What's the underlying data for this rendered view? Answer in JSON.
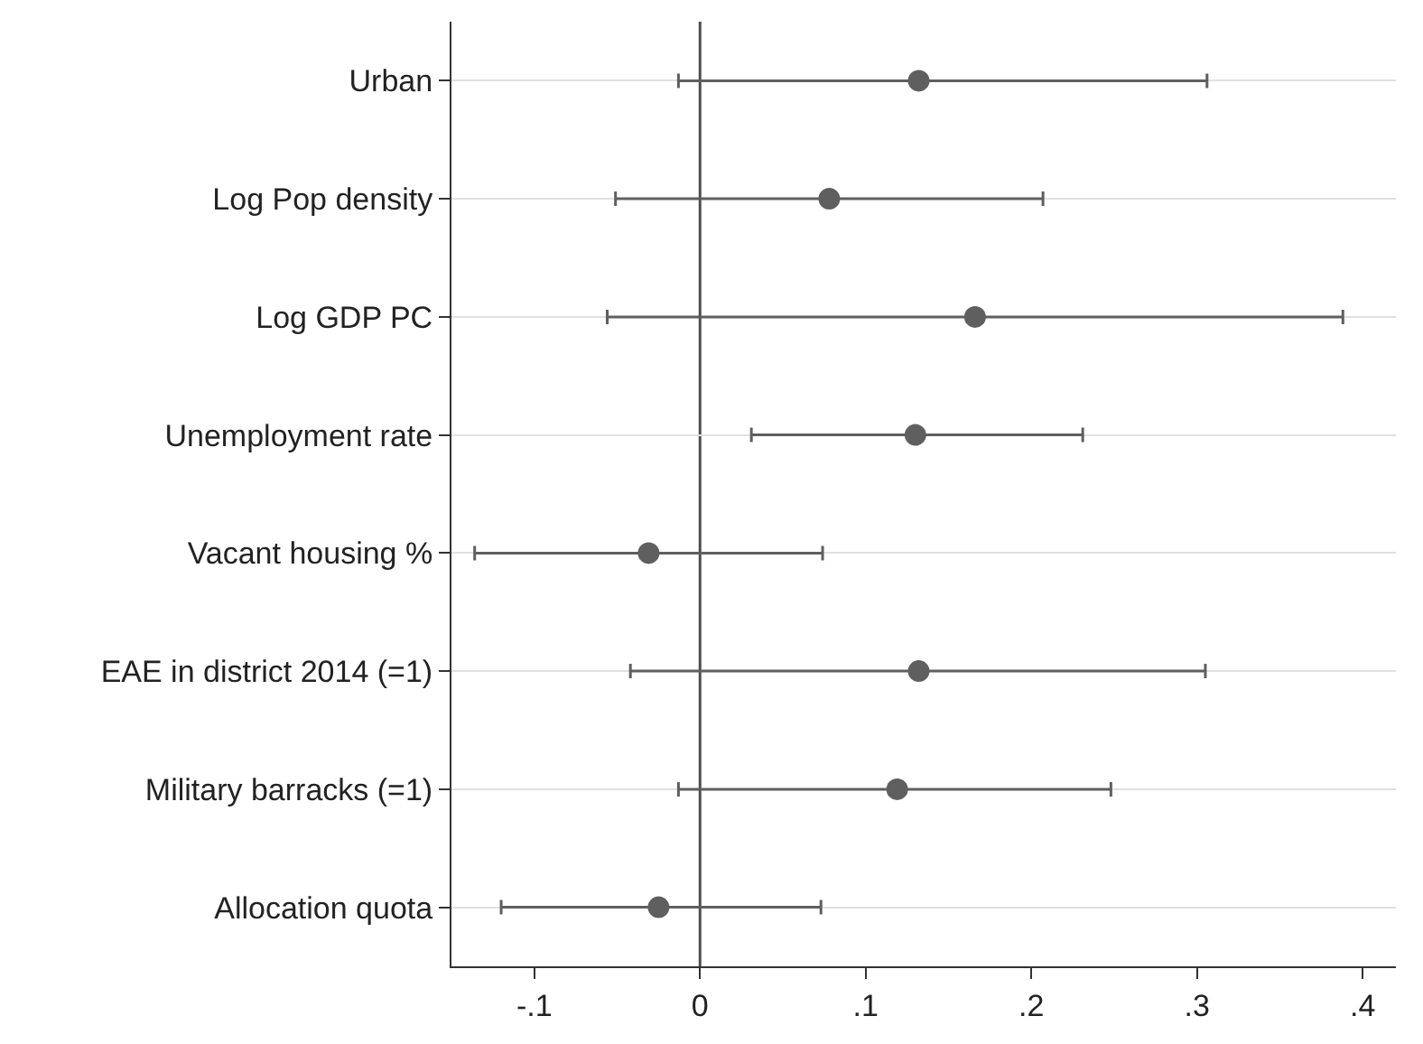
{
  "chart_data": {
    "type": "scatter",
    "orientation": "horizontal",
    "categories": [
      "Urban",
      "Log Pop density",
      "Log GDP PC",
      "Unemployment rate",
      "Vacant housing %",
      "EAE in district 2014 (=1)",
      "Military barracks (=1)",
      "Allocation quota"
    ],
    "series": [
      {
        "color": "#5f5f5f",
        "values": [
          0.132,
          0.078,
          0.166,
          0.13,
          -0.031,
          0.132,
          0.119,
          -0.025
        ],
        "errors": [
          [
            -0.013,
            0.306
          ],
          [
            -0.051,
            0.207
          ],
          [
            -0.056,
            0.388
          ],
          [
            0.031,
            0.231
          ],
          [
            -0.136,
            0.074
          ],
          [
            -0.042,
            0.305
          ],
          [
            -0.013,
            0.248
          ],
          [
            -0.12,
            0.073
          ]
        ]
      }
    ],
    "xlim": [
      -0.15,
      0.42
    ],
    "xticks": [
      {
        "value": -0.1,
        "label": "-.1"
      },
      0,
      {
        "value": 0.1,
        "label": ".1"
      },
      {
        "value": 0.2,
        "label": ".2"
      },
      {
        "value": 0.3,
        "label": ".3"
      },
      {
        "value": 0.4,
        "label": ".4"
      }
    ],
    "ref_lines": [
      {
        "axis": "x",
        "value": 0,
        "color": "#4d4d4d"
      }
    ],
    "grid": "y",
    "marker": "circle"
  }
}
